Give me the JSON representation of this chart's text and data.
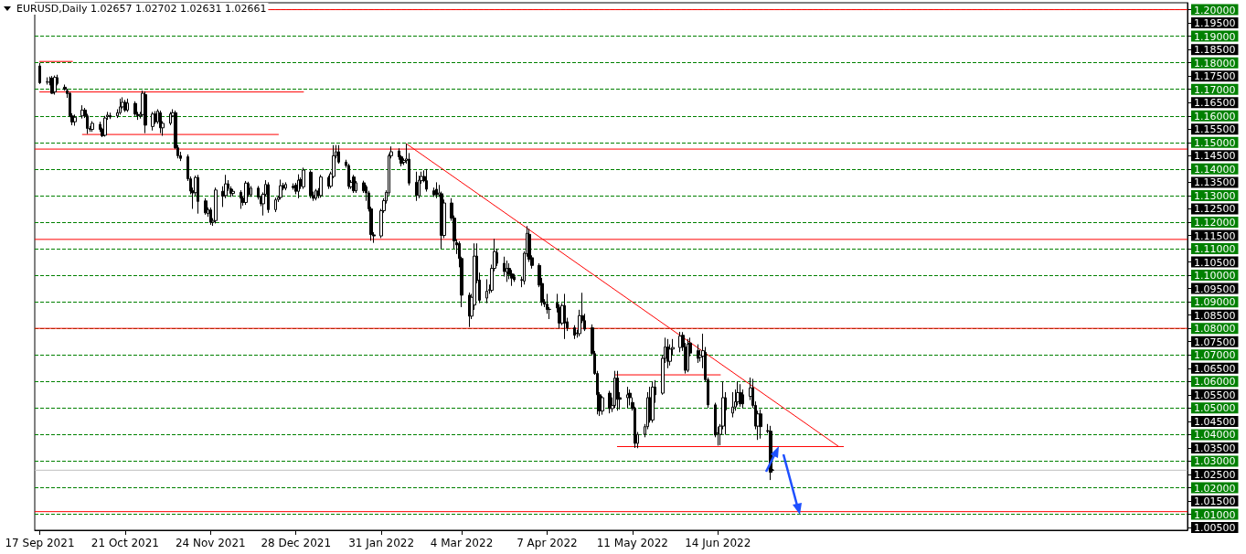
{
  "chart_data": {
    "type": "candlestick",
    "title": "EURUSD,Daily 1.02657 1.02702 1.02631 1.02661",
    "color": "#000000",
    "marker": "none",
    "grid": "y",
    "x": [
      "2021-09-17",
      "2021-09-20",
      "2021-09-21",
      "2021-09-22",
      "2021-09-23",
      "2021-09-24",
      "2021-09-27",
      "2021-09-28",
      "2021-09-29",
      "2021-09-30",
      "2021-10-01",
      "2021-10-04",
      "2021-10-05",
      "2021-10-06",
      "2021-10-07",
      "2021-10-08",
      "2021-10-11",
      "2021-10-12",
      "2021-10-13",
      "2021-10-14",
      "2021-10-15",
      "2021-10-18",
      "2021-10-19",
      "2021-10-20",
      "2021-10-21",
      "2021-10-22",
      "2021-10-25",
      "2021-10-26",
      "2021-10-27",
      "2021-10-28",
      "2021-10-29",
      "2021-11-01",
      "2021-11-02",
      "2021-11-03",
      "2021-11-04",
      "2021-11-05",
      "2021-11-08",
      "2021-11-09",
      "2021-11-10",
      "2021-11-11",
      "2021-11-12",
      "2021-11-15",
      "2021-11-16",
      "2021-11-17",
      "2021-11-18",
      "2021-11-19",
      "2021-11-22",
      "2021-11-23",
      "2021-11-24",
      "2021-11-25",
      "2021-11-26",
      "2021-11-29",
      "2021-11-30",
      "2021-12-01",
      "2021-12-02",
      "2021-12-03",
      "2021-12-06",
      "2021-12-07",
      "2021-12-08",
      "2021-12-09",
      "2021-12-10",
      "2021-12-13",
      "2021-12-14",
      "2021-12-15",
      "2021-12-16",
      "2021-12-17",
      "2021-12-20",
      "2021-12-21",
      "2021-12-22",
      "2021-12-23",
      "2021-12-24",
      "2021-12-27",
      "2021-12-28",
      "2021-12-29",
      "2021-12-30",
      "2021-12-31",
      "2022-01-03",
      "2022-01-04",
      "2022-01-05",
      "2022-01-06",
      "2022-01-07",
      "2022-01-10",
      "2022-01-11",
      "2022-01-12",
      "2022-01-13",
      "2022-01-14",
      "2022-01-17",
      "2022-01-18",
      "2022-01-19",
      "2022-01-20",
      "2022-01-21",
      "2022-01-24",
      "2022-01-25",
      "2022-01-26",
      "2022-01-27",
      "2022-01-28",
      "2022-01-31",
      "2022-02-01",
      "2022-02-02",
      "2022-02-03",
      "2022-02-04",
      "2022-02-07",
      "2022-02-08",
      "2022-02-09",
      "2022-02-10",
      "2022-02-11",
      "2022-02-14",
      "2022-02-15",
      "2022-02-16",
      "2022-02-17",
      "2022-02-18",
      "2022-02-21",
      "2022-02-22",
      "2022-02-23",
      "2022-02-24",
      "2022-02-25",
      "2022-02-28",
      "2022-03-01",
      "2022-03-02",
      "2022-03-03",
      "2022-03-04",
      "2022-03-07",
      "2022-03-08",
      "2022-03-09",
      "2022-03-10",
      "2022-03-11",
      "2022-03-14",
      "2022-03-15",
      "2022-03-16",
      "2022-03-17",
      "2022-03-18",
      "2022-03-21",
      "2022-03-22",
      "2022-03-23",
      "2022-03-24",
      "2022-03-25",
      "2022-03-28",
      "2022-03-29",
      "2022-03-30",
      "2022-03-31",
      "2022-04-01",
      "2022-04-04",
      "2022-04-05",
      "2022-04-06",
      "2022-04-07",
      "2022-04-08",
      "2022-04-11",
      "2022-04-12",
      "2022-04-13",
      "2022-04-14",
      "2022-04-15",
      "2022-04-18",
      "2022-04-19",
      "2022-04-20",
      "2022-04-21",
      "2022-04-22",
      "2022-04-25",
      "2022-04-26",
      "2022-04-27",
      "2022-04-28",
      "2022-04-29",
      "2022-05-02",
      "2022-05-03",
      "2022-05-04",
      "2022-05-05",
      "2022-05-06",
      "2022-05-09",
      "2022-05-10",
      "2022-05-11",
      "2022-05-12",
      "2022-05-13",
      "2022-05-16",
      "2022-05-17",
      "2022-05-18",
      "2022-05-19",
      "2022-05-20",
      "2022-05-23",
      "2022-05-24",
      "2022-05-25",
      "2022-05-26",
      "2022-05-27",
      "2022-05-30",
      "2022-05-31",
      "2022-06-01",
      "2022-06-02",
      "2022-06-03",
      "2022-06-06",
      "2022-06-07",
      "2022-06-08",
      "2022-06-09",
      "2022-06-10",
      "2022-06-13",
      "2022-06-14",
      "2022-06-15",
      "2022-06-16",
      "2022-06-17",
      "2022-06-20",
      "2022-06-21",
      "2022-06-22",
      "2022-06-23",
      "2022-06-24",
      "2022-06-27",
      "2022-06-28",
      "2022-06-29",
      "2022-06-30",
      "2022-07-01",
      "2022-07-04",
      "2022-07-05",
      "2022-07-06"
    ],
    "ohlc": [
      [
        1.1788,
        1.18,
        1.172,
        1.1725
      ],
      [
        1.1727,
        1.1745,
        1.1718,
        1.1728
      ],
      [
        1.1728,
        1.1748,
        1.1715,
        1.1726
      ],
      [
        1.1742,
        1.175,
        1.1683,
        1.1685
      ],
      [
        1.169,
        1.1752,
        1.168,
        1.1745
      ],
      [
        1.1744,
        1.1755,
        1.1715,
        1.1722
      ],
      [
        1.1708,
        1.1718,
        1.1695,
        1.17
      ],
      [
        1.1695,
        1.1702,
        1.1668,
        1.1684
      ],
      [
        1.1685,
        1.169,
        1.1595,
        1.16
      ],
      [
        1.16,
        1.161,
        1.1565,
        1.1577
      ],
      [
        1.1578,
        1.1605,
        1.1563,
        1.1595
      ],
      [
        1.16,
        1.164,
        1.159,
        1.1622
      ],
      [
        1.1622,
        1.163,
        1.1592,
        1.16
      ],
      [
        1.16,
        1.1608,
        1.1532,
        1.1553
      ],
      [
        1.1553,
        1.1562,
        1.154,
        1.1549
      ],
      [
        1.1549,
        1.158,
        1.154,
        1.1572
      ],
      [
        1.1568,
        1.1578,
        1.154,
        1.1549
      ],
      [
        1.155,
        1.1556,
        1.152,
        1.1525
      ],
      [
        1.1527,
        1.16,
        1.1522,
        1.1592
      ],
      [
        1.1598,
        1.1615,
        1.1585,
        1.1603
      ],
      [
        1.1601,
        1.1612,
        1.1588,
        1.1596
      ],
      [
        1.16,
        1.1625,
        1.1592,
        1.1612
      ],
      [
        1.1612,
        1.1665,
        1.1605,
        1.1634
      ],
      [
        1.1634,
        1.167,
        1.1628,
        1.1651
      ],
      [
        1.1651,
        1.166,
        1.1615,
        1.1622
      ],
      [
        1.1622,
        1.1665,
        1.1615,
        1.1648
      ],
      [
        1.1647,
        1.1655,
        1.16,
        1.1607
      ],
      [
        1.1606,
        1.1615,
        1.1585,
        1.16
      ],
      [
        1.16,
        1.1615,
        1.159,
        1.1606
      ],
      [
        1.1605,
        1.1695,
        1.1598,
        1.1685
      ],
      [
        1.168,
        1.1692,
        1.1535,
        1.1565
      ],
      [
        1.156,
        1.1615,
        1.1545,
        1.1607
      ],
      [
        1.1607,
        1.1618,
        1.157,
        1.1578
      ],
      [
        1.1578,
        1.1625,
        1.157,
        1.1618
      ],
      [
        1.1612,
        1.162,
        1.1535,
        1.1555
      ],
      [
        1.1555,
        1.158,
        1.1525,
        1.1572
      ],
      [
        1.1572,
        1.1615,
        1.1565,
        1.1607
      ],
      [
        1.16,
        1.1625,
        1.1595,
        1.1612
      ],
      [
        1.1612,
        1.162,
        1.1475,
        1.148
      ],
      [
        1.148,
        1.149,
        1.144,
        1.145
      ],
      [
        1.145,
        1.1465,
        1.143,
        1.144
      ],
      [
        1.1446,
        1.1455,
        1.1355,
        1.1363
      ],
      [
        1.1363,
        1.1372,
        1.1305,
        1.1317
      ],
      [
        1.1318,
        1.133,
        1.125,
        1.131
      ],
      [
        1.1311,
        1.1375,
        1.13,
        1.1368
      ],
      [
        1.1368,
        1.1378,
        1.1232,
        1.1278
      ],
      [
        1.128,
        1.129,
        1.1228,
        1.1235
      ],
      [
        1.1232,
        1.1255,
        1.122,
        1.1247
      ],
      [
        1.1246,
        1.1255,
        1.119,
        1.1199
      ],
      [
        1.12,
        1.1215,
        1.1186,
        1.1206
      ],
      [
        1.1206,
        1.133,
        1.1195,
        1.1321
      ],
      [
        1.1316,
        1.1335,
        1.1257,
        1.1298
      ],
      [
        1.13,
        1.1378,
        1.129,
        1.1344
      ],
      [
        1.1344,
        1.1358,
        1.1318,
        1.1327
      ],
      [
        1.1326,
        1.1335,
        1.1295,
        1.1308
      ],
      [
        1.1308,
        1.1325,
        1.1298,
        1.1316
      ],
      [
        1.1312,
        1.132,
        1.125,
        1.129
      ],
      [
        1.129,
        1.1298,
        1.1262,
        1.1274
      ],
      [
        1.1274,
        1.1355,
        1.1265,
        1.1347
      ],
      [
        1.1345,
        1.1352,
        1.1295,
        1.1303
      ],
      [
        1.1303,
        1.1336,
        1.1295,
        1.1328
      ],
      [
        1.1328,
        1.1336,
        1.1285,
        1.1294
      ],
      [
        1.1294,
        1.13,
        1.126,
        1.1269
      ],
      [
        1.1269,
        1.1312,
        1.1225,
        1.1305
      ],
      [
        1.1304,
        1.1358,
        1.1296,
        1.1342
      ],
      [
        1.1341,
        1.135,
        1.1235,
        1.1247
      ],
      [
        1.1247,
        1.1292,
        1.1238,
        1.1284
      ],
      [
        1.1285,
        1.13,
        1.1276,
        1.1293
      ],
      [
        1.1293,
        1.136,
        1.1285,
        1.1337
      ],
      [
        1.1338,
        1.1348,
        1.132,
        1.1328
      ],
      [
        1.1328,
        1.135,
        1.132,
        1.1342
      ],
      [
        1.1335,
        1.1346,
        1.1322,
        1.133
      ],
      [
        1.134,
        1.1348,
        1.1305,
        1.1316
      ],
      [
        1.1316,
        1.138,
        1.129,
        1.1358
      ],
      [
        1.136,
        1.1368,
        1.1325,
        1.1336
      ],
      [
        1.1333,
        1.1405,
        1.1325,
        1.1396
      ],
      [
        1.1388,
        1.1395,
        1.129,
        1.1301
      ],
      [
        1.13,
        1.1315,
        1.128,
        1.129
      ],
      [
        1.129,
        1.1325,
        1.1282,
        1.1318
      ],
      [
        1.1318,
        1.1328,
        1.129,
        1.13
      ],
      [
        1.13,
        1.1378,
        1.1292,
        1.137
      ],
      [
        1.1368,
        1.1375,
        1.1325,
        1.1335
      ],
      [
        1.1335,
        1.139,
        1.1328,
        1.1382
      ],
      [
        1.1372,
        1.149,
        1.1365,
        1.145
      ],
      [
        1.145,
        1.149,
        1.144,
        1.1465
      ],
      [
        1.1465,
        1.149,
        1.142,
        1.1426
      ],
      [
        1.1426,
        1.1435,
        1.1405,
        1.1413
      ],
      [
        1.1413,
        1.142,
        1.1325,
        1.1335
      ],
      [
        1.1333,
        1.1358,
        1.1325,
        1.135
      ],
      [
        1.137,
        1.1378,
        1.131,
        1.1318
      ],
      [
        1.1318,
        1.1355,
        1.131,
        1.1348
      ],
      [
        1.1348,
        1.1356,
        1.131,
        1.1318
      ],
      [
        1.1333,
        1.134,
        1.128,
        1.131
      ],
      [
        1.131,
        1.1318,
        1.124,
        1.125
      ],
      [
        1.125,
        1.1258,
        1.113,
        1.1153
      ],
      [
        1.1152,
        1.1162,
        1.1122,
        1.1148
      ],
      [
        1.1148,
        1.125,
        1.114,
        1.1243
      ],
      [
        1.1243,
        1.129,
        1.1235,
        1.1281
      ],
      [
        1.128,
        1.132,
        1.127,
        1.1312
      ],
      [
        1.131,
        1.1458,
        1.13,
        1.145
      ],
      [
        1.145,
        1.1485,
        1.144,
        1.1465
      ],
      [
        1.1468,
        1.1478,
        1.1435,
        1.1446
      ],
      [
        1.1446,
        1.1452,
        1.141,
        1.1421
      ],
      [
        1.1425,
        1.144,
        1.1415,
        1.1432
      ],
      [
        1.1432,
        1.1495,
        1.142,
        1.1438
      ],
      [
        1.1437,
        1.146,
        1.1338,
        1.1347
      ],
      [
        1.135,
        1.139,
        1.128,
        1.1301
      ],
      [
        1.1299,
        1.1375,
        1.129,
        1.1358
      ],
      [
        1.1356,
        1.139,
        1.1345,
        1.1372
      ],
      [
        1.1372,
        1.1395,
        1.135,
        1.1356
      ],
      [
        1.1356,
        1.14,
        1.1315,
        1.1324
      ],
      [
        1.1318,
        1.133,
        1.1295,
        1.1303
      ],
      [
        1.1324,
        1.135,
        1.129,
        1.1303
      ],
      [
        1.1303,
        1.134,
        1.1295,
        1.131
      ],
      [
        1.1307,
        1.1315,
        1.11,
        1.115
      ],
      [
        1.115,
        1.1285,
        1.114,
        1.1272
      ],
      [
        1.1272,
        1.129,
        1.1205,
        1.1215
      ],
      [
        1.1215,
        1.1225,
        1.11,
        1.1129
      ],
      [
        1.1123,
        1.1135,
        1.108,
        1.1114
      ],
      [
        1.112,
        1.1128,
        1.103,
        1.1063
      ],
      [
        1.1063,
        1.107,
        1.088,
        1.0925
      ],
      [
        1.0925,
        1.0935,
        1.0805,
        1.0846
      ],
      [
        1.0846,
        1.093,
        1.0835,
        1.0917
      ],
      [
        1.0888,
        1.112,
        1.087,
        1.1072
      ],
      [
        1.1072,
        1.112,
        1.097,
        1.098
      ],
      [
        1.0982,
        1.101,
        1.0895,
        1.0906
      ],
      [
        1.0914,
        1.0985,
        1.0895,
        1.094
      ],
      [
        1.0943,
        1.0965,
        1.093,
        1.0946
      ],
      [
        1.0943,
        1.104,
        1.0935,
        1.1026
      ],
      [
        1.1026,
        1.1137,
        1.1015,
        1.1089
      ],
      [
        1.1085,
        1.11,
        1.1035,
        1.1045
      ],
      [
        1.1045,
        1.107,
        1.0995,
        1.1014
      ],
      [
        1.1012,
        1.1055,
        1.0975,
        1.1026
      ],
      [
        1.1026,
        1.1045,
        1.0985,
        1.1003
      ],
      [
        1.1005,
        1.102,
        1.096,
        1.0989
      ],
      [
        1.0994,
        1.1005,
        1.0975,
        1.0983
      ],
      [
        1.0983,
        1.0995,
        1.0955,
        1.0982
      ],
      [
        1.0978,
        1.109,
        1.0965,
        1.1083
      ],
      [
        1.1081,
        1.1185,
        1.107,
        1.1158
      ],
      [
        1.1154,
        1.1175,
        1.105,
        1.106
      ],
      [
        1.1066,
        1.1075,
        1.1025,
        1.1037
      ],
      [
        1.1037,
        1.1045,
        1.0955,
        1.0963
      ],
      [
        1.0969,
        1.099,
        1.0885,
        1.0898
      ],
      [
        1.09,
        1.091,
        1.088,
        1.0891
      ],
      [
        1.0891,
        1.093,
        1.0855,
        1.0871
      ],
      [
        1.0871,
        1.088,
        1.0835,
        1.0872
      ],
      [
        1.0895,
        1.093,
        1.086,
        1.0877
      ],
      [
        1.0879,
        1.089,
        1.08,
        1.082
      ],
      [
        1.082,
        1.0895,
        1.0812,
        1.0886
      ],
      [
        1.0886,
        1.093,
        1.076,
        1.082
      ],
      [
        1.0825,
        1.084,
        1.079,
        1.0802
      ],
      [
        1.0802,
        1.0812,
        1.076,
        1.0774
      ],
      [
        1.0783,
        1.0795,
        1.0765,
        1.078
      ],
      [
        1.078,
        1.087,
        1.077,
        1.0848
      ],
      [
        1.0848,
        1.0934,
        1.082,
        1.0829
      ],
      [
        1.0829,
        1.0855,
        1.079,
        1.0797
      ],
      [
        1.0802,
        1.0815,
        1.07,
        1.0705
      ],
      [
        1.0705,
        1.0715,
        1.0625,
        1.063
      ],
      [
        1.063,
        1.064,
        1.0476,
        1.055
      ],
      [
        1.055,
        1.056,
        1.047,
        1.0489
      ],
      [
        1.0489,
        1.0545,
        1.0475,
        1.0539
      ],
      [
        1.0556,
        1.0565,
        1.048,
        1.0498
      ],
      [
        1.0498,
        1.054,
        1.0485,
        1.051
      ],
      [
        1.051,
        1.064,
        1.05,
        1.0613
      ],
      [
        1.0613,
        1.064,
        1.049,
        1.0533
      ],
      [
        1.0539,
        1.056,
        1.0495,
        1.0533
      ],
      [
        1.0539,
        1.058,
        1.05,
        1.055
      ],
      [
        1.0556,
        1.057,
        1.051,
        1.0539
      ],
      [
        1.0521,
        1.054,
        1.049,
        1.0498
      ],
      [
        1.0498,
        1.0505,
        1.035,
        1.0367
      ],
      [
        1.0367,
        1.041,
        1.0349,
        1.0401
      ],
      [
        1.0401,
        1.044,
        1.039,
        1.043
      ],
      [
        1.043,
        1.056,
        1.042,
        1.0539
      ],
      [
        1.0539,
        1.058,
        1.0445,
        1.0455
      ],
      [
        1.0455,
        1.06,
        1.0445,
        1.0579
      ],
      [
        1.0579,
        1.0605,
        1.052,
        1.055
      ],
      [
        1.0556,
        1.07,
        1.055,
        1.0687
      ],
      [
        1.0687,
        1.0765,
        1.067,
        1.073
      ],
      [
        1.073,
        1.076,
        1.065,
        1.0676
      ],
      [
        1.0676,
        1.074,
        1.066,
        1.0722
      ],
      [
        1.0722,
        1.076,
        1.07,
        1.0728
      ],
      [
        1.0728,
        1.0787,
        1.071,
        1.0771
      ],
      [
        1.0774,
        1.0786,
        1.0715,
        1.073
      ],
      [
        1.073,
        1.0745,
        1.063,
        1.0642
      ],
      [
        1.0642,
        1.076,
        1.0635,
        1.0741
      ],
      [
        1.0745,
        1.0765,
        1.0695,
        1.0707
      ],
      [
        1.0716,
        1.074,
        1.067,
        1.0687
      ],
      [
        1.0691,
        1.072,
        1.0675,
        1.0699
      ],
      [
        1.0695,
        1.078,
        1.065,
        1.0716
      ],
      [
        1.071,
        1.073,
        1.06,
        1.0607
      ],
      [
        1.0607,
        1.0615,
        1.05,
        1.0512
      ],
      [
        1.0512,
        1.052,
        1.039,
        1.0398
      ],
      [
        1.0407,
        1.043,
        1.0359,
        1.0404
      ],
      [
        1.0401,
        1.044,
        1.036,
        1.0432
      ],
      [
        1.0432,
        1.06,
        1.042,
        1.0539
      ],
      [
        1.0539,
        1.056,
        1.04,
        1.0493
      ],
      [
        1.0481,
        1.056,
        1.0465,
        1.0504
      ],
      [
        1.0504,
        1.057,
        1.049,
        1.0524
      ],
      [
        1.0524,
        1.06,
        1.051,
        1.0558
      ],
      [
        1.0558,
        1.059,
        1.0505,
        1.0516
      ],
      [
        1.055,
        1.057,
        1.05,
        1.0516
      ],
      [
        1.0544,
        1.0615,
        1.053,
        1.0576
      ],
      [
        1.0576,
        1.061,
        1.05,
        1.051
      ],
      [
        1.051,
        1.0525,
        1.042,
        1.0432
      ],
      [
        1.0432,
        1.049,
        1.038,
        1.0478
      ],
      [
        1.0478,
        1.0495,
        1.0385,
        1.043
      ],
      [
        1.0413,
        1.044,
        1.0405,
        1.0415
      ],
      [
        1.0413,
        1.0433,
        1.0229,
        1.0258
      ],
      [
        1.02657,
        1.02702,
        1.02631,
        1.02661
      ]
    ],
    "series": [
      {
        "type": "line",
        "color": "#ff0000",
        "x": [
          "2022-02-10",
          "2022-08-01"
        ],
        "values": [
          1.1495,
          1.0356
        ]
      },
      {
        "type": "line",
        "color": "#ff0000",
        "x": [
          "2021-09-17",
          "2021-09-30"
        ],
        "values": [
          1.1805,
          1.1805
        ]
      },
      {
        "type": "line",
        "color": "#ff0000",
        "x": [
          "2021-09-17",
          "2021-12-31"
        ],
        "values": [
          1.169,
          1.169
        ]
      },
      {
        "type": "line",
        "color": "#ff0000",
        "x": [
          "2021-10-04",
          "2021-12-21"
        ],
        "values": [
          1.153,
          1.153
        ]
      },
      {
        "type": "line",
        "color": "#ff0000",
        "x": [
          "2022-05-04",
          "2022-06-15"
        ],
        "values": [
          1.0625,
          1.0625
        ]
      },
      {
        "type": "line",
        "color": "#ff0000",
        "x": [
          "2022-05-05",
          "2022-08-03"
        ],
        "values": [
          1.0355,
          1.0355
        ]
      }
    ],
    "xlim": [
      "2021-09-15",
      "2022-12-18"
    ],
    "xticks": [
      {
        "value": "2021-09-17",
        "label": "17 Sep 2021"
      },
      {
        "value": "2021-10-21",
        "label": "21 Oct 2021"
      },
      {
        "value": "2021-11-24",
        "label": "24 Nov 2021"
      },
      {
        "value": "2021-12-28",
        "label": "28 Dec 2021"
      },
      {
        "value": "2022-01-31",
        "label": "31 Jan 2022"
      },
      {
        "value": "2022-03-04",
        "label": "4 Mar 2022"
      },
      {
        "value": "2022-04-07",
        "label": "7 Apr 2022"
      },
      {
        "value": "2022-05-11",
        "label": "11 May 2022"
      },
      {
        "value": "2022-06-14",
        "label": "14 Jun 2022"
      }
    ],
    "ylim": [
      1.004,
      1.2026
    ],
    "yticks": [
      {
        "value": 1.005,
        "label": "1.00500"
      },
      {
        "value": 1.01,
        "label": "1.01000"
      },
      {
        "value": 1.015,
        "label": "1.01500"
      },
      {
        "value": 1.02,
        "label": "1.02000"
      },
      {
        "value": 1.025,
        "label": "1.02500"
      },
      {
        "value": 1.03,
        "label": "1.03000"
      },
      {
        "value": 1.035,
        "label": "1.03500"
      },
      {
        "value": 1.04,
        "label": "1.04000"
      },
      {
        "value": 1.045,
        "label": "1.04500"
      },
      {
        "value": 1.05,
        "label": "1.05000"
      },
      {
        "value": 1.055,
        "label": "1.05500"
      },
      {
        "value": 1.06,
        "label": "1.06000"
      },
      {
        "value": 1.065,
        "label": "1.06500"
      },
      {
        "value": 1.07,
        "label": "1.07000"
      },
      {
        "value": 1.075,
        "label": "1.07500"
      },
      {
        "value": 1.08,
        "label": "1.08000"
      },
      {
        "value": 1.085,
        "label": "1.08500"
      },
      {
        "value": 1.09,
        "label": "1.09000"
      },
      {
        "value": 1.095,
        "label": "1.09500"
      },
      {
        "value": 1.1,
        "label": "1.10000"
      },
      {
        "value": 1.105,
        "label": "1.10500"
      },
      {
        "value": 1.11,
        "label": "1.11000"
      },
      {
        "value": 1.115,
        "label": "1.11500"
      },
      {
        "value": 1.12,
        "label": "1.12000"
      },
      {
        "value": 1.125,
        "label": "1.12500"
      },
      {
        "value": 1.13,
        "label": "1.13000"
      },
      {
        "value": 1.135,
        "label": "1.13500"
      },
      {
        "value": 1.14,
        "label": "1.14000"
      },
      {
        "value": 1.145,
        "label": "1.14500"
      },
      {
        "value": 1.15,
        "label": "1.15000"
      },
      {
        "value": 1.155,
        "label": "1.15500"
      },
      {
        "value": 1.16,
        "label": "1.16000"
      },
      {
        "value": 1.165,
        "label": "1.16500"
      },
      {
        "value": 1.17,
        "label": "1.17000"
      },
      {
        "value": 1.175,
        "label": "1.17500"
      },
      {
        "value": 1.18,
        "label": "1.18000"
      },
      {
        "value": 1.185,
        "label": "1.18500"
      },
      {
        "value": 1.19,
        "label": "1.19000"
      },
      {
        "value": 1.195,
        "label": "1.19500"
      },
      {
        "value": 1.2,
        "label": "1.20000"
      }
    ],
    "ref_lines": [
      {
        "axis": "y",
        "value": 1.2,
        "color": "#ff0000",
        "line_style": "solid"
      },
      {
        "axis": "y",
        "value": 1.1475,
        "color": "#ff0000",
        "line_style": "solid"
      },
      {
        "axis": "y",
        "value": 1.1135,
        "color": "#ff0000",
        "line_style": "solid"
      },
      {
        "axis": "y",
        "value": 1.08,
        "color": "#ff0000",
        "line_style": "solid"
      },
      {
        "axis": "y",
        "value": 1.011,
        "color": "#ff0000",
        "line_style": "solid"
      },
      {
        "axis": "y",
        "value": 1.0266,
        "color": "#c0c0c0",
        "line_style": "solid"
      }
    ]
  }
}
